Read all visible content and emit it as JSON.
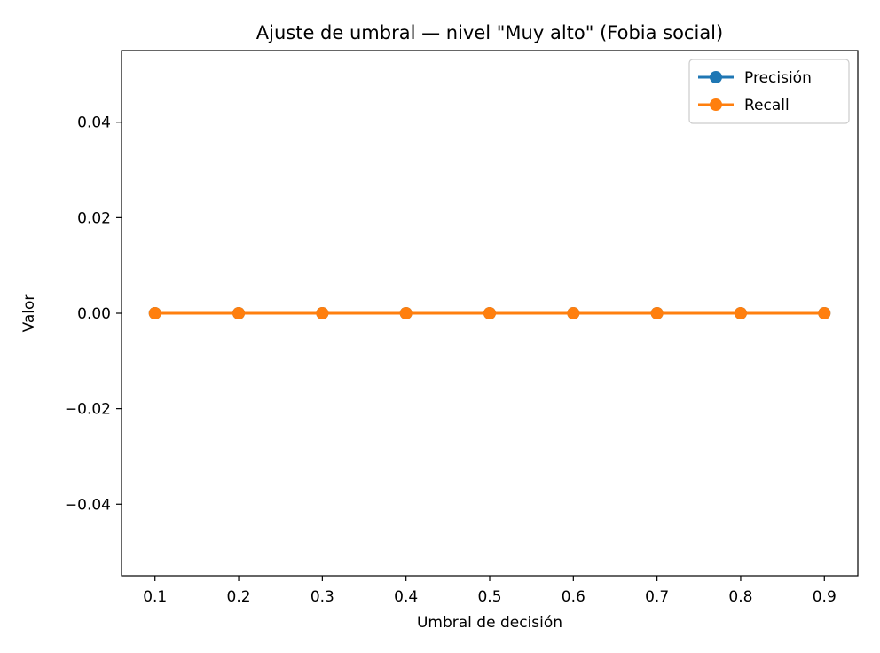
{
  "chart_data": {
    "type": "line",
    "title": "Ajuste de umbral — nivel \"Muy alto\" (Fobia social)",
    "xlabel": "Umbral de decisión",
    "ylabel": "Valor",
    "x": [
      0.1,
      0.2,
      0.3,
      0.4,
      0.5,
      0.6,
      0.7,
      0.8,
      0.9
    ],
    "xlim": [
      0.06,
      0.94
    ],
    "ylim": [
      -0.055,
      0.055
    ],
    "xticks": [
      0.1,
      0.2,
      0.3,
      0.4,
      0.5,
      0.6,
      0.7,
      0.8,
      0.9
    ],
    "xtick_labels": [
      "0.1",
      "0.2",
      "0.3",
      "0.4",
      "0.5",
      "0.6",
      "0.7",
      "0.8",
      "0.9"
    ],
    "yticks": [
      -0.04,
      -0.02,
      0.0,
      0.02,
      0.04
    ],
    "ytick_labels": [
      "−0.04",
      "−0.02",
      "0.00",
      "0.02",
      "0.04"
    ],
    "grid": false,
    "legend_position": "top-right",
    "series": [
      {
        "name": "Precisión",
        "color": "#1f77b4",
        "marker": "circle",
        "values": [
          0,
          0,
          0,
          0,
          0,
          0,
          0,
          0,
          0
        ]
      },
      {
        "name": "Recall",
        "color": "#ff7f0e",
        "marker": "circle",
        "values": [
          0,
          0,
          0,
          0,
          0,
          0,
          0,
          0,
          0
        ]
      }
    ]
  }
}
